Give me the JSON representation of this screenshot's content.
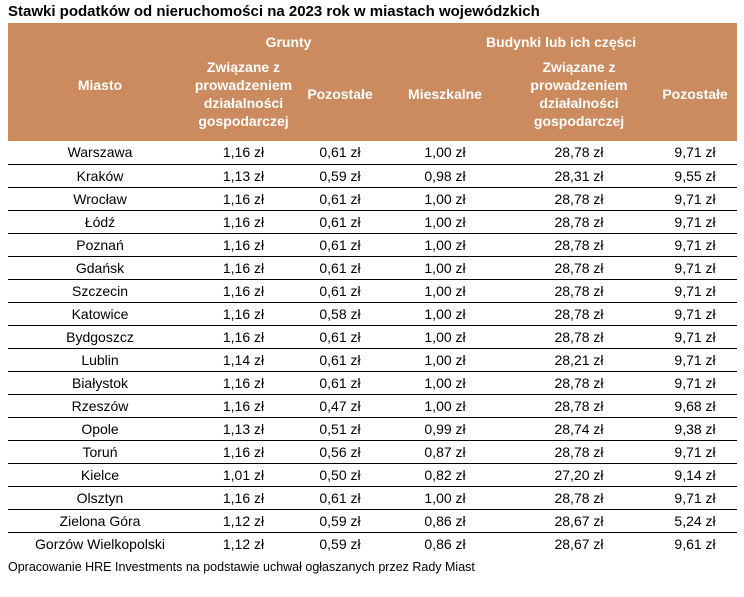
{
  "title": "Stawki podatków od nieruchomości na 2023 rok w miastach wojewódzkich",
  "source_note": "Opracowanie HRE Investments na podstawie uchwał ogłaszanych przez Rady Miast",
  "colors": {
    "header_bg": "#CB8B5F",
    "header_text": "#FFFFFF",
    "row_border": "#000000",
    "body_text": "#000000"
  },
  "chart_data": {
    "type": "table",
    "title": "Stawki podatków od nieruchomości na 2023 rok w miastach wojewódzkich",
    "unit": "zł",
    "column_groups": [
      {
        "label": "Grunty",
        "span": 2
      },
      {
        "label": "Budynki lub ich części",
        "span": 3
      }
    ],
    "columns": {
      "city": "Miasto",
      "grunty_dzialalnosc": "Związane z prowadzeniem działalności gospodarczej",
      "grunty_pozostale": "Pozostałe",
      "budynki_mieszkalne": "Mieszkalne",
      "budynki_dzialalnosc": "Związane z prowadzeniem działalności gospodarczej",
      "budynki_pozostale": "Pozostałe"
    },
    "rows": [
      {
        "city": "Warszawa",
        "values": [
          "1,16 zł",
          "0,61 zł",
          "1,00 zł",
          "28,78 zł",
          "9,71 zł"
        ]
      },
      {
        "city": "Kraków",
        "values": [
          "1,13 zł",
          "0,59 zł",
          "0,98 zł",
          "28,31 zł",
          "9,55 zł"
        ]
      },
      {
        "city": "Wrocław",
        "values": [
          "1,16 zł",
          "0,61 zł",
          "1,00 zł",
          "28,78 zł",
          "9,71 zł"
        ]
      },
      {
        "city": "Łódź",
        "values": [
          "1,16 zł",
          "0,61 zł",
          "1,00 zł",
          "28,78 zł",
          "9,71 zł"
        ]
      },
      {
        "city": "Poznań",
        "values": [
          "1,16 zł",
          "0,61 zł",
          "1,00 zł",
          "28,78 zł",
          "9,71 zł"
        ]
      },
      {
        "city": "Gdańsk",
        "values": [
          "1,16 zł",
          "0,61 zł",
          "1,00 zł",
          "28,78 zł",
          "9,71 zł"
        ]
      },
      {
        "city": "Szczecin",
        "values": [
          "1,16 zł",
          "0,61 zł",
          "1,00 zł",
          "28,78 zł",
          "9,71 zł"
        ]
      },
      {
        "city": "Katowice",
        "values": [
          "1,16 zł",
          "0,58 zł",
          "1,00 zł",
          "28,78 zł",
          "9,71 zł"
        ]
      },
      {
        "city": "Bydgoszcz",
        "values": [
          "1,16 zł",
          "0,61 zł",
          "1,00 zł",
          "28,78 zł",
          "9,71 zł"
        ]
      },
      {
        "city": "Lublin",
        "values": [
          "1,14 zł",
          "0,61 zł",
          "1,00 zł",
          "28,21 zł",
          "9,71 zł"
        ]
      },
      {
        "city": "Białystok",
        "values": [
          "1,16 zł",
          "0,61 zł",
          "1,00 zł",
          "28,78 zł",
          "9,71 zł"
        ]
      },
      {
        "city": "Rzeszów",
        "values": [
          "1,16 zł",
          "0,47 zł",
          "1,00 zł",
          "28,78 zł",
          "9,68 zł"
        ]
      },
      {
        "city": "Opole",
        "values": [
          "1,13 zł",
          "0,51 zł",
          "0,99 zł",
          "28,74 zł",
          "9,38 zł"
        ]
      },
      {
        "city": "Toruń",
        "values": [
          "1,16 zł",
          "0,56 zł",
          "0,87 zł",
          "28,78 zł",
          "9,71 zł"
        ]
      },
      {
        "city": "Kielce",
        "values": [
          "1,01 zł",
          "0,50 zł",
          "0,82 zł",
          "27,20 zł",
          "9,14 zł"
        ]
      },
      {
        "city": "Olsztyn",
        "values": [
          "1,16 zł",
          "0,61 zł",
          "1,00 zł",
          "28,78 zł",
          "9,71 zł"
        ]
      },
      {
        "city": "Zielona Góra",
        "values": [
          "1,12 zł",
          "0,59 zł",
          "0,86 zł",
          "28,67 zł",
          "5,24 zł"
        ]
      },
      {
        "city": "Gorzów Wielkopolski",
        "values": [
          "1,12 zł",
          "0,59 zł",
          "0,86 zł",
          "28,67 zł",
          "9,61 zł"
        ]
      }
    ]
  }
}
